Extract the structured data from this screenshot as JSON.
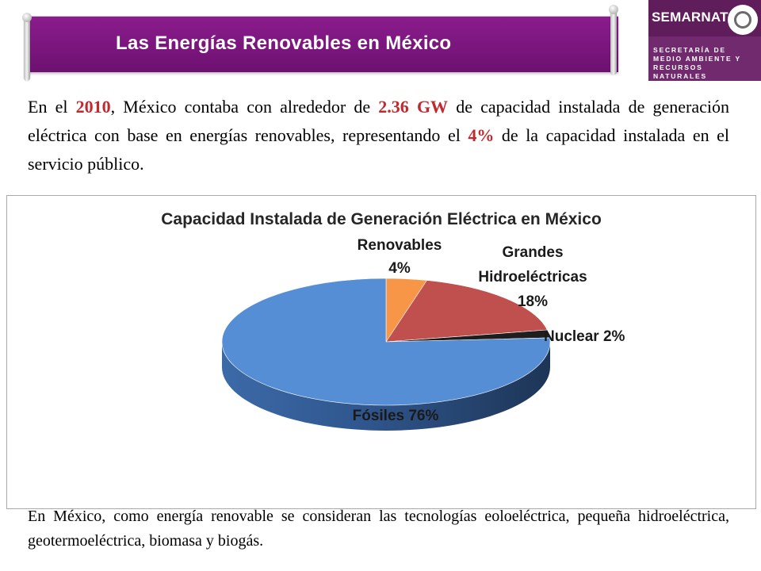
{
  "header": {
    "title": "Las Energías Renovables en México"
  },
  "logo": {
    "brand": "SEMARNAT",
    "subtitle": [
      "SECRETARÍA DE",
      "MEDIO AMBIENTE Y",
      "RECURSOS NATURALES"
    ],
    "seal_icon": "mexican-seal-icon"
  },
  "intro": {
    "part1": "En el ",
    "year": "2010",
    "part2": ", México contaba con alrededor de ",
    "capacity": "2.36 GW",
    "part3": " de capacidad instalada de generación eléctrica con base en energías renovables, representando el ",
    "share": "4%",
    "part4": " de la capacidad instalada en el servicio público."
  },
  "outro": {
    "text": "En México, como energía renovable se consideran las tecnologías eoloeléctrica, pequeña hidroeléctrica, geotermoeléctrica, biomasa y biogás."
  },
  "chart_data": {
    "type": "pie",
    "title": "Capacidad Instalada de Generación Eléctrica en México",
    "slices": [
      {
        "name": "Renovables",
        "value": 4,
        "color": "#f79646",
        "label_lines": [
          "Renovables",
          "4%"
        ]
      },
      {
        "name": "Grandes Hidroeléctricas",
        "value": 18,
        "color": "#c0504d",
        "label_lines": [
          "Grandes",
          "Hidroeléctricas",
          "18%"
        ]
      },
      {
        "name": "Nuclear",
        "value": 2,
        "color": "#1e1e1e",
        "label_lines": [
          "Nuclear 2%"
        ]
      },
      {
        "name": "Fósiles",
        "value": 76,
        "color": "#558ed5",
        "label_lines": [
          "Fósiles 76%"
        ]
      }
    ]
  },
  "colors": {
    "banner": "#7d1a80",
    "highlight": "#c0292e",
    "logo_bg": "#722a6f"
  }
}
